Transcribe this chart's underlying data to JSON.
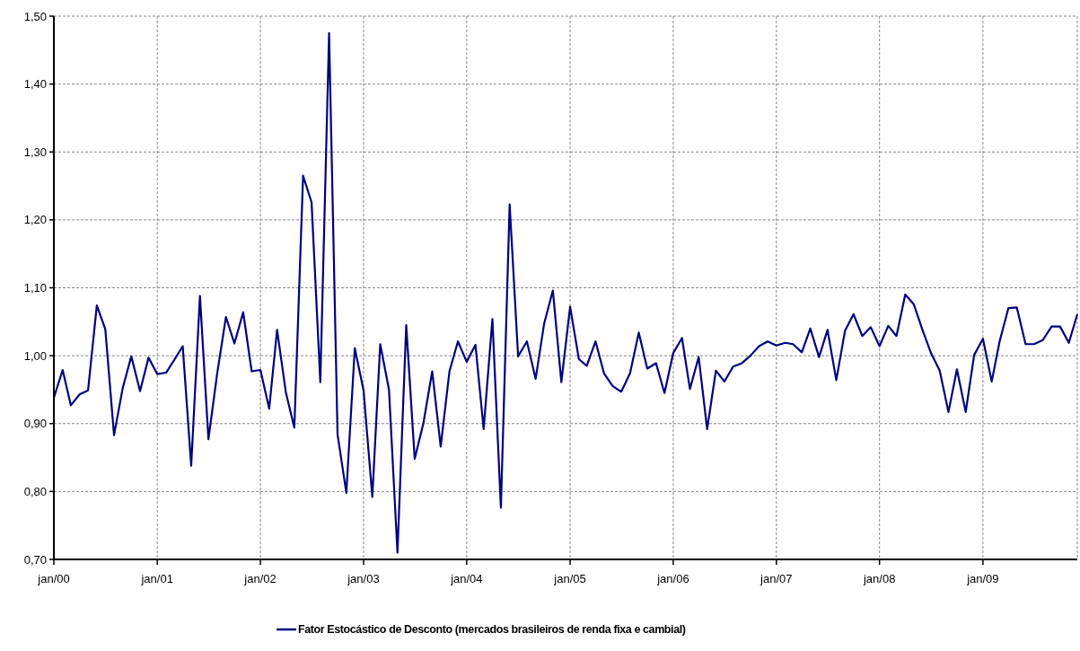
{
  "chart_data": {
    "type": "line",
    "x": [
      "2000-01",
      "2000-02",
      "2000-03",
      "2000-04",
      "2000-05",
      "2000-06",
      "2000-07",
      "2000-08",
      "2000-09",
      "2000-10",
      "2000-11",
      "2000-12",
      "2001-01",
      "2001-02",
      "2001-03",
      "2001-04",
      "2001-05",
      "2001-06",
      "2001-07",
      "2001-08",
      "2001-09",
      "2001-10",
      "2001-11",
      "2001-12",
      "2002-01",
      "2002-02",
      "2002-03",
      "2002-04",
      "2002-05",
      "2002-06",
      "2002-07",
      "2002-08",
      "2002-09",
      "2002-10",
      "2002-11",
      "2002-12",
      "2003-01",
      "2003-02",
      "2003-03",
      "2003-04",
      "2003-05",
      "2003-06",
      "2003-07",
      "2003-08",
      "2003-09",
      "2003-10",
      "2003-11",
      "2003-12",
      "2004-01",
      "2004-02",
      "2004-03",
      "2004-04",
      "2004-05",
      "2004-06",
      "2004-07",
      "2004-08",
      "2004-09",
      "2004-10",
      "2004-11",
      "2004-12",
      "2005-01",
      "2005-02",
      "2005-03",
      "2005-04",
      "2005-05",
      "2005-06",
      "2005-07",
      "2005-08",
      "2005-09",
      "2005-10",
      "2005-11",
      "2005-12",
      "2006-01",
      "2006-02",
      "2006-03",
      "2006-04",
      "2006-05",
      "2006-06",
      "2006-07",
      "2006-08",
      "2006-09",
      "2006-10",
      "2006-11",
      "2006-12",
      "2007-01",
      "2007-02",
      "2007-03",
      "2007-04",
      "2007-05",
      "2007-06",
      "2007-07",
      "2007-08",
      "2007-09",
      "2007-10",
      "2007-11",
      "2007-12",
      "2008-01",
      "2008-02",
      "2008-03",
      "2008-04",
      "2008-05",
      "2008-06",
      "2008-07",
      "2008-08",
      "2008-09",
      "2008-10",
      "2008-11",
      "2008-12",
      "2009-01",
      "2009-02",
      "2009-03",
      "2009-04",
      "2009-05",
      "2009-06",
      "2009-07",
      "2009-08",
      "2009-09",
      "2009-10",
      "2009-11",
      "2009-12"
    ],
    "series": [
      {
        "name": "Fator Estocástico de Desconto (mercados brasileiros de renda fixa e cambial)",
        "color": "#000080",
        "values": [
          0.938,
          0.979,
          0.927,
          0.943,
          0.949,
          1.074,
          1.039,
          0.883,
          0.953,
          0.999,
          0.948,
          0.997,
          0.973,
          0.975,
          0.993,
          1.014,
          0.838,
          1.088,
          0.877,
          0.974,
          1.057,
          1.018,
          1.064,
          0.977,
          0.979,
          0.922,
          1.038,
          0.946,
          0.894,
          1.265,
          1.226,
          0.961,
          1.475,
          0.884,
          0.798,
          1.011,
          0.949,
          0.792,
          1.017,
          0.95,
          0.71,
          1.045,
          0.848,
          0.901,
          0.977,
          0.866,
          0.977,
          1.021,
          0.991,
          1.016,
          0.892,
          1.054,
          0.776,
          1.223,
          0.999,
          1.021,
          0.966,
          1.047,
          1.096,
          0.961,
          1.072,
          0.995,
          0.985,
          1.021,
          0.974,
          0.955,
          0.947,
          0.974,
          1.034,
          0.981,
          0.989,
          0.945,
          1.004,
          1.026,
          0.951,
          0.998,
          0.892,
          0.978,
          0.962,
          0.984,
          0.989,
          1.0,
          1.014,
          1.021,
          1.015,
          1.019,
          1.017,
          1.005,
          1.04,
          0.998,
          1.038,
          0.964,
          1.037,
          1.061,
          1.029,
          1.042,
          1.014,
          1.044,
          1.029,
          1.09,
          1.076,
          1.038,
          1.004,
          0.978,
          0.917,
          0.98,
          0.917,
          1.001,
          1.025,
          0.962,
          1.021,
          1.07,
          1.071,
          1.017,
          1.017,
          1.023,
          1.043,
          1.043,
          1.019,
          1.061
        ]
      }
    ],
    "xlim": [
      "2000-01",
      "2009-12"
    ],
    "xticks": [
      {
        "value": "2000-01",
        "label": "jan/00"
      },
      {
        "value": "2001-01",
        "label": "jan/01"
      },
      {
        "value": "2002-01",
        "label": "jan/02"
      },
      {
        "value": "2003-01",
        "label": "jan/03"
      },
      {
        "value": "2004-01",
        "label": "jan/04"
      },
      {
        "value": "2005-01",
        "label": "jan/05"
      },
      {
        "value": "2006-01",
        "label": "jan/06"
      },
      {
        "value": "2007-01",
        "label": "jan/07"
      },
      {
        "value": "2008-01",
        "label": "jan/08"
      },
      {
        "value": "2009-01",
        "label": "jan/09"
      }
    ],
    "ylim": [
      0.7,
      1.5
    ],
    "yticks": [
      {
        "value": 0.7,
        "label": "0,70"
      },
      {
        "value": 0.8,
        "label": "0,80"
      },
      {
        "value": 0.9,
        "label": "0,90"
      },
      {
        "value": 1.0,
        "label": "1,00"
      },
      {
        "value": 1.1,
        "label": "1,10"
      },
      {
        "value": 1.2,
        "label": "1,20"
      },
      {
        "value": 1.3,
        "label": "1,30"
      },
      {
        "value": 1.4,
        "label": "1,40"
      },
      {
        "value": 1.5,
        "label": "1,50"
      }
    ],
    "grid": true,
    "legend": "bottom",
    "marker": "none",
    "line_style": "solid"
  }
}
